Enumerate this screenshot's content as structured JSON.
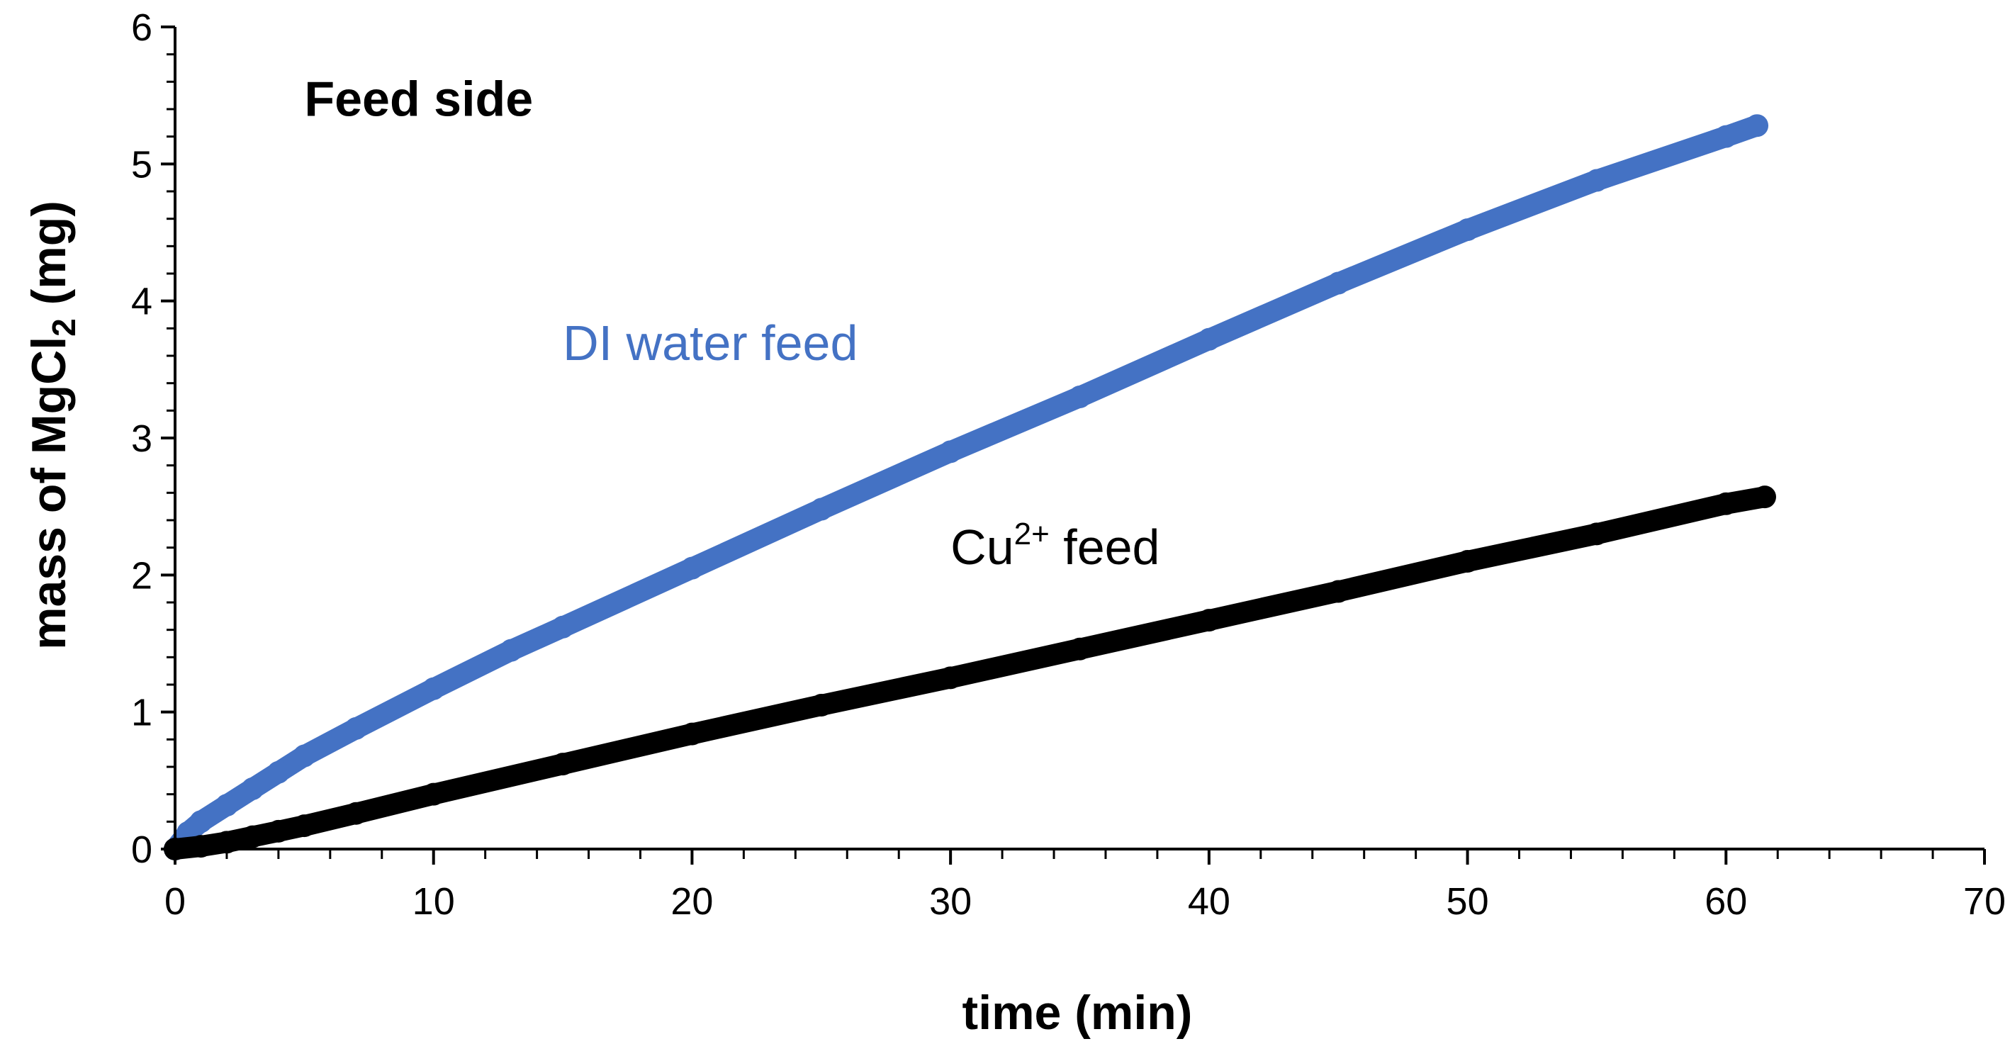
{
  "chart_data": {
    "type": "scatter",
    "title": "",
    "xlabel": "time (min)",
    "ylabel": {
      "prefix": "mass of MgCl",
      "subscript": "2",
      "suffix": " (mg)"
    },
    "xlim": [
      0,
      70
    ],
    "ylim": [
      0,
      6
    ],
    "x_ticks": [
      0,
      10,
      20,
      30,
      40,
      50,
      60,
      70
    ],
    "y_ticks": [
      0,
      1,
      2,
      3,
      4,
      5,
      6
    ],
    "grid": false,
    "legend": "none",
    "series": [
      {
        "key": "di-water",
        "color": "#4472C4",
        "x": [
          0,
          0.5,
          1,
          2,
          3,
          4,
          5,
          7,
          10,
          13,
          15,
          20,
          25,
          30,
          35,
          40,
          45,
          50,
          55,
          60,
          61.2
        ],
        "y": [
          0,
          0.12,
          0.2,
          0.32,
          0.44,
          0.56,
          0.68,
          0.88,
          1.17,
          1.45,
          1.62,
          2.05,
          2.48,
          2.9,
          3.3,
          3.72,
          4.13,
          4.52,
          4.88,
          5.2,
          5.28
        ]
      },
      {
        "key": "cu-feed",
        "color": "#000000",
        "x": [
          0,
          1,
          2,
          3,
          4,
          5,
          7,
          10,
          15,
          20,
          25,
          30,
          35,
          40,
          45,
          50,
          55,
          60,
          61.5
        ],
        "y": [
          0,
          0.02,
          0.05,
          0.09,
          0.13,
          0.17,
          0.26,
          0.4,
          0.62,
          0.84,
          1.05,
          1.25,
          1.46,
          1.67,
          1.88,
          2.1,
          2.3,
          2.52,
          2.57
        ]
      }
    ],
    "annotations": [
      {
        "key": "panel-label",
        "text": "Feed side",
        "color": "#000000",
        "x": 5,
        "y": 5.35,
        "bold": true
      },
      {
        "key": "di-label",
        "text": "DI water feed",
        "color": "#4472C4",
        "x": 15,
        "y": 3.57,
        "bold": false
      },
      {
        "key": "cu-label",
        "text": "Cu",
        "sup": "2+",
        "suffix": " feed",
        "color": "#000000",
        "x": 30,
        "y": 2.08,
        "bold": false
      }
    ]
  }
}
